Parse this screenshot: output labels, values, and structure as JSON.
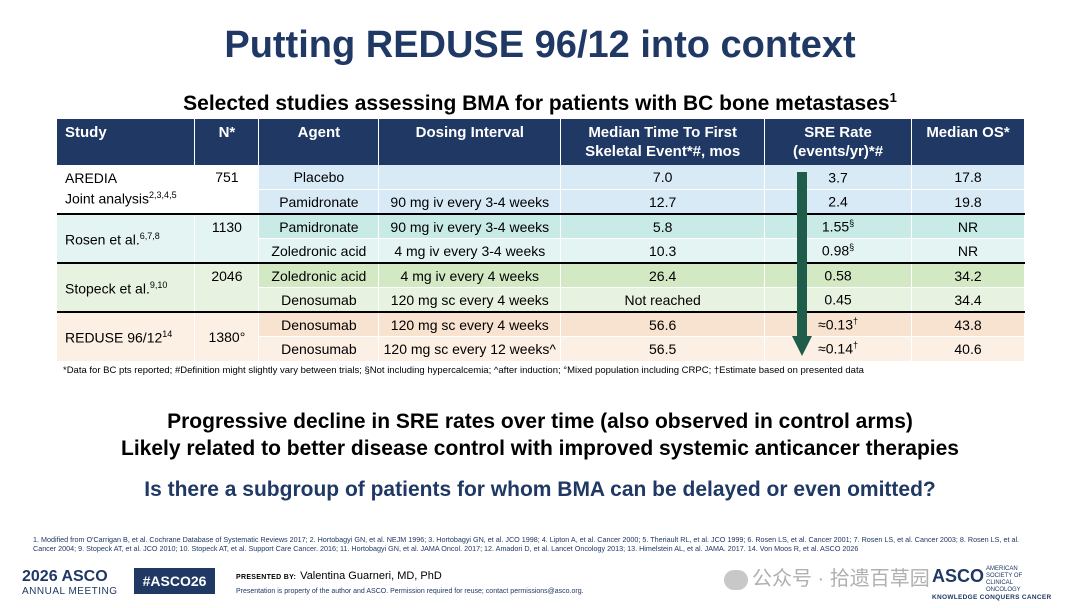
{
  "slide": {
    "title": "Putting REDUSE 96/12 into context",
    "subtitle": "Selected studies assessing BMA for patients with BC bone metastases",
    "subtitle_sup": "1"
  },
  "table": {
    "headers": {
      "study": "Study",
      "n": "N*",
      "agent": "Agent",
      "dosing": "Dosing Interval",
      "time_line1": "Median Time To First",
      "time_line2": "Skeletal Event*#, mos",
      "sre_line1": "SRE Rate",
      "sre_line2": "(events/yr)*#",
      "os": "Median OS*"
    },
    "groups": [
      {
        "study_line1": "AREDIA",
        "study_line2": "Joint analysis",
        "study_sup": "2,3,4,5",
        "n": "751",
        "rows": [
          {
            "agent": "Placebo",
            "dosing": "",
            "time": "7.0",
            "sre": "3.7",
            "sre_sup": "",
            "os": "17.8"
          },
          {
            "agent": "Pamidronate",
            "dosing": "90 mg iv every 3-4 weeks",
            "time": "12.7",
            "sre": "2.4",
            "sre_sup": "",
            "os": "19.8"
          }
        ]
      },
      {
        "study_line1": "Rosen et al.",
        "study_sup": "6,7,8",
        "n": "1130",
        "rows": [
          {
            "agent": "Pamidronate",
            "dosing": "90 mg iv every 3-4 weeks",
            "time": "5.8",
            "sre": "1.55",
            "sre_sup": "§",
            "os": "NR"
          },
          {
            "agent": "Zoledronic acid",
            "dosing": "4 mg iv every 3-4 weeks",
            "time": "10.3",
            "sre": "0.98",
            "sre_sup": "§",
            "os": "NR"
          }
        ]
      },
      {
        "study_line1": "Stopeck et al.",
        "study_sup": "9,10",
        "n": "2046",
        "rows": [
          {
            "agent": "Zoledronic acid",
            "dosing": "4 mg iv every 4 weeks",
            "time": "26.4",
            "sre": "0.58",
            "sre_sup": "",
            "os": "34.2"
          },
          {
            "agent": "Denosumab",
            "dosing": "120 mg sc every 4 weeks",
            "time": "Not reached",
            "sre": "0.45",
            "sre_sup": "",
            "os": "34.4"
          }
        ]
      },
      {
        "study_line1": "REDUSE 96/12",
        "study_sup": "14",
        "n": "1380°",
        "rows": [
          {
            "agent": "Denosumab",
            "dosing": "120 mg sc every 4 weeks",
            "time": "56.6",
            "sre": "≈0.13",
            "sre_sup": "†",
            "os": "43.8"
          },
          {
            "agent": "Denosumab",
            "dosing": "120 mg sc every 12 weeks^",
            "time": "56.5",
            "sre": "≈0.14",
            "sre_sup": "†",
            "os": "40.6"
          }
        ]
      }
    ],
    "footnote": "*Data for BC pts reported;  #Definition might slightly vary between trials; §Not including hypercalcemia; ^after induction; °Mixed population including CRPC; †Estimate based on presented data"
  },
  "messages": {
    "line1": "Progressive decline in SRE rates over time (also observed in control arms)",
    "line2": "Likely related to better disease control with improved systemic anticancer therapies",
    "question": "Is there a subgroup of patients for whom BMA can be delayed or even omitted?"
  },
  "references": "1. Modified from O'Carrigan B, et al. Cochrane Database of Systematic Reviews 2017; 2. Hortobagyi GN, et al. NEJM 1996; 3. Hortobagyi GN, et al. JCO 1998; 4. Lipton A, et al. Cancer 2000; 5. Theriault RL, et al. JCO 1999; 6. Rosen LS, et al. Cancer 2001; 7. Rosen LS, et al. Cancer 2003; 8. Rosen LS, et al. Cancer 2004; 9. Stopeck AT, et al. JCO 2010; 10. Stopeck AT, et al. Support Care Cancer. 2016; 11. Hortobagyi GN, et al. JAMA Oncol. 2017; 12. Amadori D, et al. Lancet Oncology 2013; 13. Himelstein AL, et al. JAMA. 2017. 14. Von Moos R, et al. ASCO 2026",
  "footer": {
    "meeting_line1": "2026 ASCO",
    "meeting_line2": "ANNUAL MEETING",
    "hashtag": "#ASCO26",
    "presented_label": "PRESENTED BY:",
    "presenter": "Valentina Guarneri, MD, PhD",
    "property_note": "Presentation is property of the author and ASCO. Permission required for reuse; contact permissions@asco.org.",
    "watermark": "公众号 · 拾遗百草园",
    "asco_logo": "ASCO",
    "asco_sub": "AMERICAN SOCIETY OF CLINICAL ONCOLOGY",
    "asco_tagline": "KNOWLEDGE CONQUERS CANCER"
  },
  "colors": {
    "navy": "#1f3864",
    "arrow": "#1f5c4a"
  }
}
